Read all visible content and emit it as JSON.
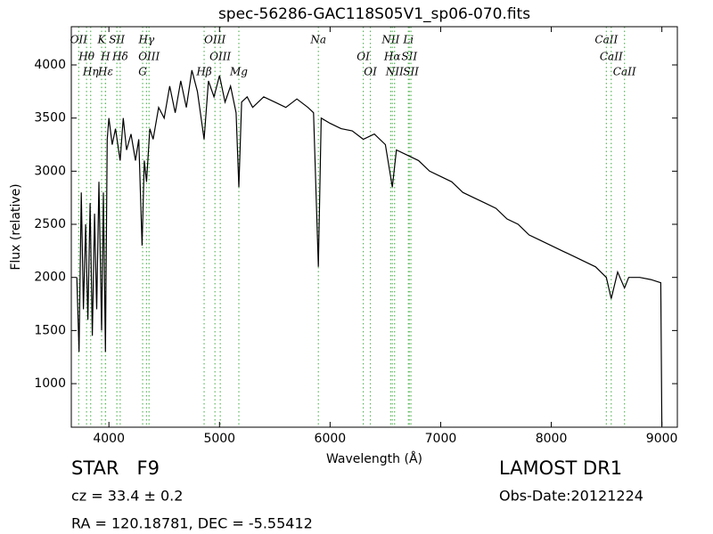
{
  "chart_data": {
    "type": "line",
    "title": "spec-56286-GAC118S05V1_sp06-070.fits",
    "x_label": "Wavelength (Å)",
    "y_label": "Flux (relative)",
    "xlim": [
      3660,
      9140
    ],
    "ylim": [
      590,
      4360
    ],
    "xticks": [
      4000,
      5000,
      6000,
      7000,
      8000,
      9000
    ],
    "yticks": [
      1000,
      1500,
      2000,
      2500,
      3000,
      3500,
      4000
    ],
    "color": "#000000",
    "line_color": "#5cb85c",
    "x": [
      3710,
      3730,
      3750,
      3770,
      3790,
      3810,
      3830,
      3850,
      3870,
      3890,
      3910,
      3934,
      3950,
      3969,
      3985,
      4000,
      4030,
      4060,
      4102,
      4130,
      4160,
      4200,
      4240,
      4270,
      4300,
      4320,
      4340,
      4370,
      4400,
      4450,
      4500,
      4550,
      4600,
      4650,
      4700,
      4750,
      4800,
      4861,
      4900,
      4950,
      5000,
      5050,
      5100,
      5150,
      5175,
      5200,
      5250,
      5300,
      5400,
      5500,
      5600,
      5700,
      5800,
      5850,
      5894,
      5920,
      6000,
      6100,
      6200,
      6300,
      6400,
      6500,
      6563,
      6600,
      6700,
      6800,
      6900,
      7000,
      7100,
      7200,
      7300,
      7400,
      7500,
      7600,
      7700,
      7800,
      7900,
      8000,
      8100,
      8200,
      8300,
      8400,
      8498,
      8542,
      8600,
      8662,
      8700,
      8800,
      8900,
      8990,
      9000
    ],
    "values": [
      2000,
      1300,
      2800,
      1700,
      2500,
      1600,
      2700,
      1450,
      2600,
      1700,
      2900,
      1500,
      2800,
      1300,
      3300,
      3500,
      3250,
      3400,
      3100,
      3500,
      3200,
      3350,
      3100,
      3300,
      2300,
      3100,
      2900,
      3400,
      3300,
      3600,
      3500,
      3800,
      3550,
      3850,
      3600,
      3950,
      3750,
      3300,
      3850,
      3700,
      3900,
      3650,
      3800,
      3550,
      2850,
      3650,
      3700,
      3600,
      3700,
      3650,
      3600,
      3680,
      3600,
      3550,
      2100,
      3500,
      3450,
      3400,
      3380,
      3300,
      3350,
      3250,
      2850,
      3200,
      3150,
      3100,
      3000,
      2950,
      2900,
      2800,
      2750,
      2700,
      2650,
      2550,
      2500,
      2400,
      2350,
      2300,
      2250,
      2200,
      2150,
      2100,
      2000,
      1800,
      2050,
      1900,
      2000,
      2000,
      1980,
      1950,
      600
    ],
    "lines": [
      {
        "label": "OII",
        "wavelength": 3727
      },
      {
        "label": "Hθ",
        "wavelength": 3798
      },
      {
        "label": "Hη",
        "wavelength": 3835
      },
      {
        "label": "K",
        "wavelength": 3934
      },
      {
        "label": "H",
        "wavelength": 3969
      },
      {
        "label": "Hε",
        "wavelength": 3970
      },
      {
        "label": "SII",
        "wavelength": 4072
      },
      {
        "label": "Hδ",
        "wavelength": 4102
      },
      {
        "label": "G",
        "wavelength": 4305
      },
      {
        "label": "Hγ",
        "wavelength": 4340
      },
      {
        "label": "OIII",
        "wavelength": 4363
      },
      {
        "label": "Hβ",
        "wavelength": 4861
      },
      {
        "label": "OIII",
        "wavelength": 4959
      },
      {
        "label": "OIII",
        "wavelength": 5007
      },
      {
        "label": "Mg",
        "wavelength": 5175
      },
      {
        "label": "Na",
        "wavelength": 5894
      },
      {
        "label": "OI",
        "wavelength": 6300
      },
      {
        "label": "OI",
        "wavelength": 6364
      },
      {
        "label": "NII",
        "wavelength": 6548
      },
      {
        "label": "Hα",
        "wavelength": 6563
      },
      {
        "label": "NII",
        "wavelength": 6583
      },
      {
        "label": "Li",
        "wavelength": 6708
      },
      {
        "label": "SII",
        "wavelength": 6716
      },
      {
        "label": "SII",
        "wavelength": 6731
      },
      {
        "label": "CaII",
        "wavelength": 8498
      },
      {
        "label": "CaII",
        "wavelength": 8542
      },
      {
        "label": "CaII",
        "wavelength": 8662
      }
    ]
  },
  "footer": {
    "class": "STAR   F9",
    "cz": "cz = 33.4 ± 0.2",
    "coords": "RA = 120.18781, DEC = -5.55412",
    "survey": "LAMOST DR1",
    "obs_date": "Obs-Date:20121224"
  }
}
